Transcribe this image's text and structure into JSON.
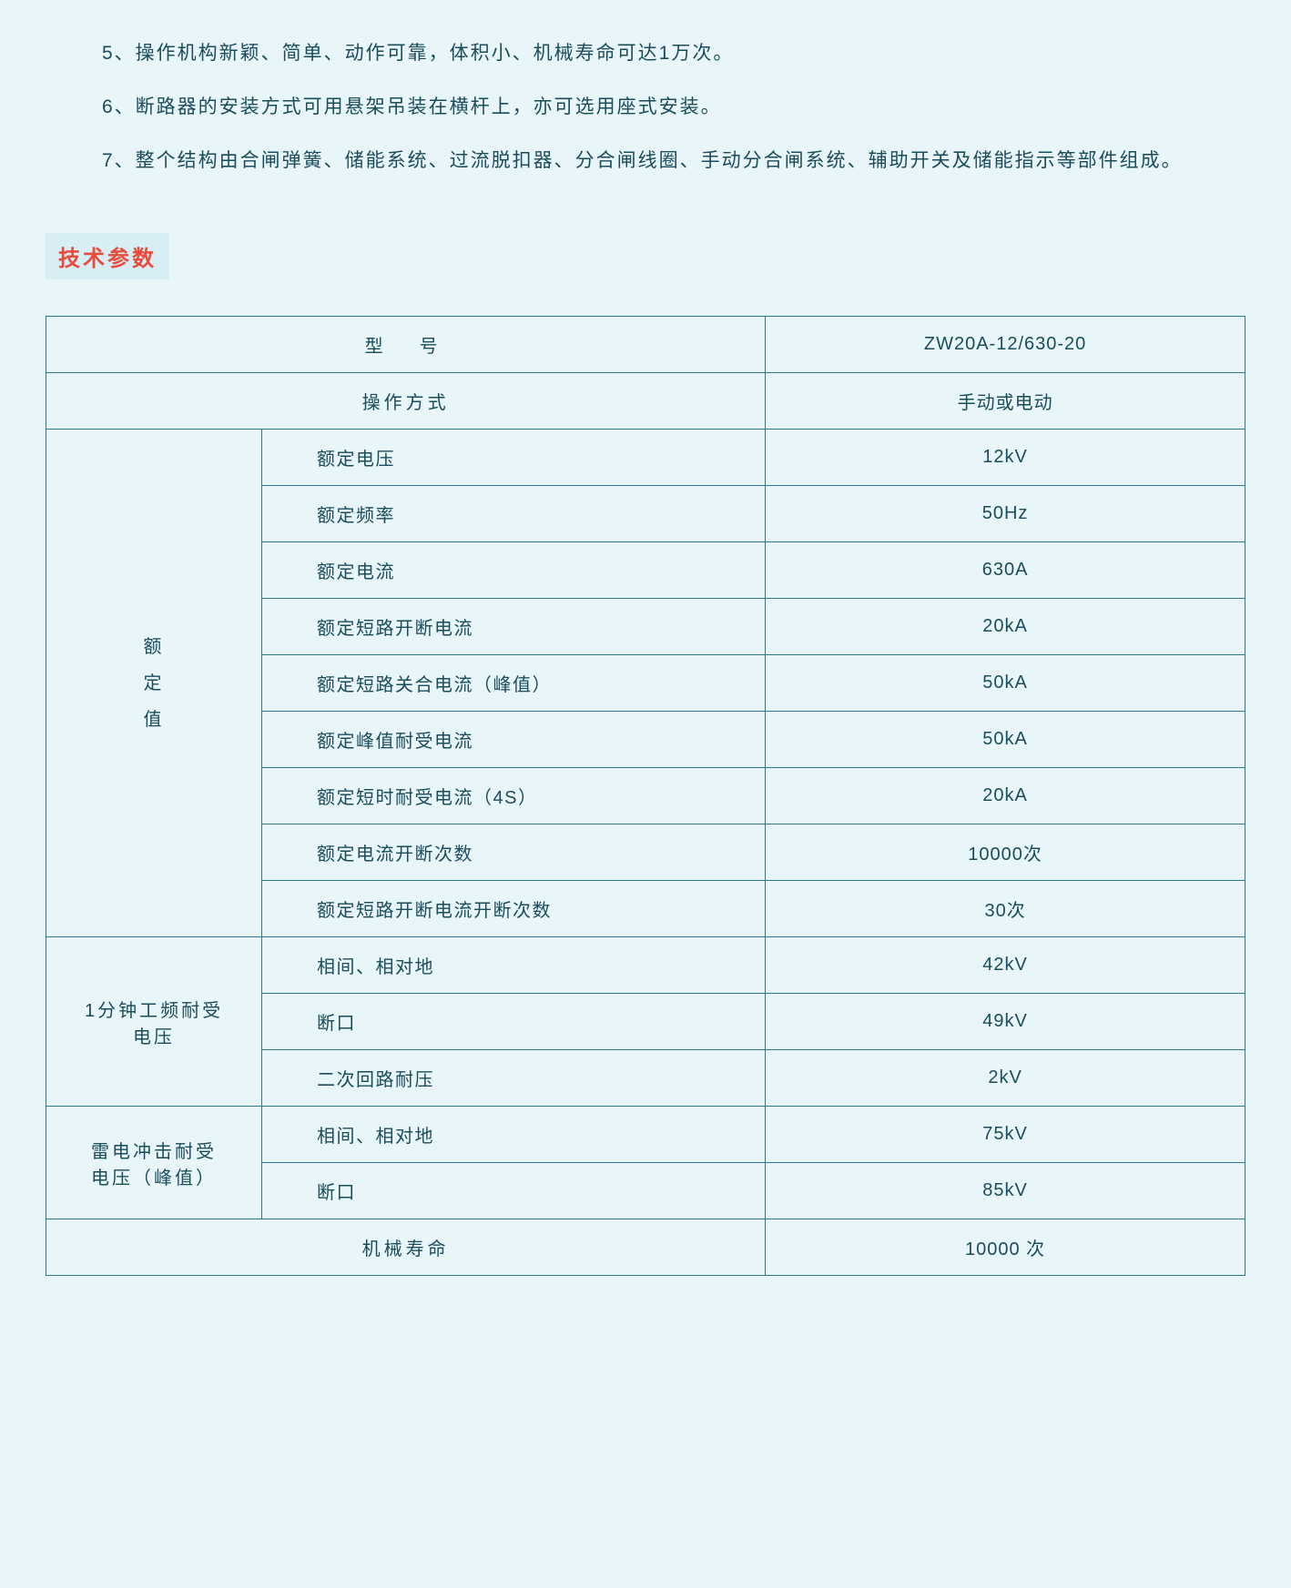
{
  "colors": {
    "background": "#e8f5f9",
    "text": "#1a4d5c",
    "heading_text": "#e74c3c",
    "heading_bg": "#d8eef5",
    "table_border": "#2a7a8c"
  },
  "typography": {
    "body_font_size": 21,
    "heading_font_size": 24,
    "table_font_size": 20
  },
  "paragraphs": [
    "5、操作机构新颖、简单、动作可靠，体积小、机械寿命可达1万次。",
    "6、断路器的安装方式可用悬架吊装在横杆上，亦可选用座式安装。",
    "7、整个结构由合闸弹簧、储能系统、过流脱扣器、分合闸线圈、手动分合闸系统、辅助开关及储能指示等部件组成。"
  ],
  "section_heading": "技术参数",
  "table": {
    "type": "table",
    "header": {
      "label": "型　号",
      "value": "ZW20A-12/630-20"
    },
    "operation": {
      "label": "操作方式",
      "value": "手动或电动"
    },
    "groups": [
      {
        "title_lines": [
          "额",
          "定",
          "值"
        ],
        "rows": [
          {
            "label": "额定电压",
            "value": "12kV"
          },
          {
            "label": "额定频率",
            "value": "50Hz"
          },
          {
            "label": "额定电流",
            "value": "630A"
          },
          {
            "label": "额定短路开断电流",
            "value": "20kA"
          },
          {
            "label": "额定短路关合电流（峰值）",
            "value": "50kA"
          },
          {
            "label": "额定峰值耐受电流",
            "value": "50kA"
          },
          {
            "label": "额定短时耐受电流（4S）",
            "value": "20kA"
          },
          {
            "label": "额定电流开断次数",
            "value": "10000次"
          },
          {
            "label": "额定短路开断电流开断次数",
            "value": "30次"
          }
        ]
      },
      {
        "title_lines": [
          "1分钟工频耐受",
          "电压"
        ],
        "rows": [
          {
            "label": "相间、相对地",
            "value": "42kV"
          },
          {
            "label": "断口",
            "value": "49kV"
          },
          {
            "label": "二次回路耐压",
            "value": "2kV"
          }
        ]
      },
      {
        "title_lines": [
          "雷电冲击耐受",
          "电压（峰值）"
        ],
        "rows": [
          {
            "label": "相间、相对地",
            "value": "75kV"
          },
          {
            "label": "断口",
            "value": "85kV"
          }
        ]
      }
    ],
    "footer": {
      "label": "机械寿命",
      "value": "10000 次"
    }
  }
}
